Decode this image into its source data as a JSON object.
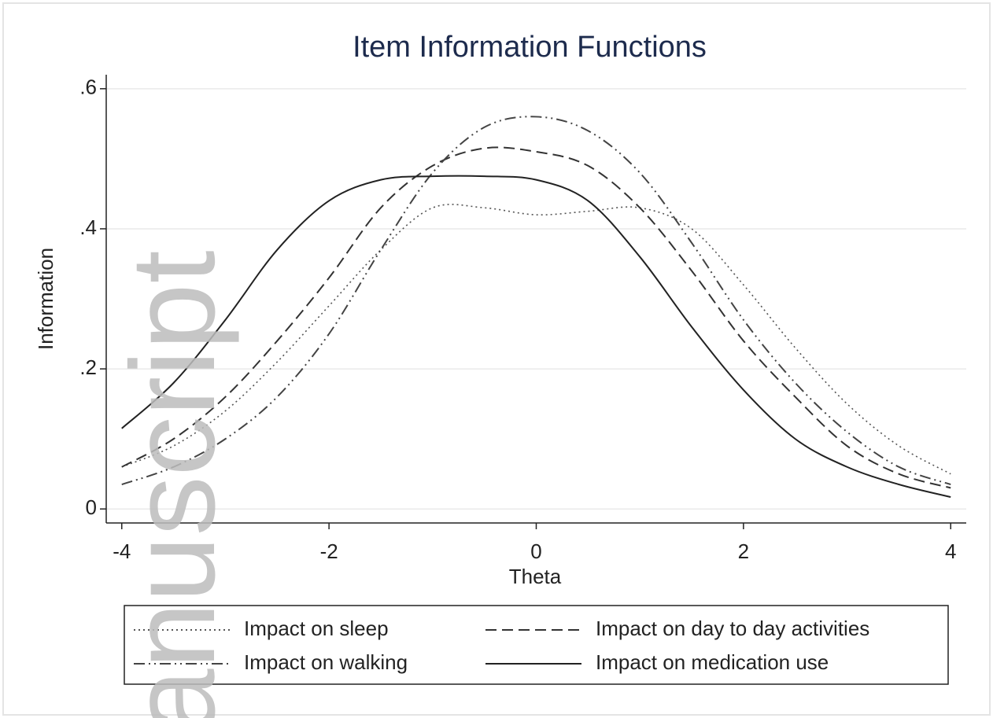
{
  "chart_data": {
    "type": "line",
    "title": "Item Information Functions",
    "x_label": "Theta",
    "y_label": "Information",
    "x": [
      -4,
      -3.5,
      -3,
      -2.5,
      -2,
      -1.5,
      -1,
      -0.5,
      0,
      0.5,
      1,
      1.5,
      2,
      2.5,
      3,
      3.5,
      4
    ],
    "series": [
      {
        "name": "Impact on sleep",
        "color": "#555555",
        "style": "dotted",
        "values": [
          0.06,
          0.09,
          0.14,
          0.21,
          0.29,
          0.37,
          0.43,
          0.43,
          0.42,
          0.425,
          0.43,
          0.4,
          0.32,
          0.23,
          0.15,
          0.09,
          0.05
        ]
      },
      {
        "name": "Impact on day to day activities",
        "color": "#333333",
        "style": "dashed",
        "values": [
          0.06,
          0.1,
          0.16,
          0.24,
          0.33,
          0.43,
          0.49,
          0.515,
          0.51,
          0.49,
          0.43,
          0.34,
          0.24,
          0.16,
          0.09,
          0.05,
          0.03
        ]
      },
      {
        "name": "Impact on walking",
        "color": "#444444",
        "style": "dashdot",
        "values": [
          0.035,
          0.06,
          0.1,
          0.16,
          0.25,
          0.37,
          0.48,
          0.545,
          0.56,
          0.54,
          0.48,
          0.38,
          0.27,
          0.18,
          0.11,
          0.06,
          0.035
        ]
      },
      {
        "name": "Impact on medication use",
        "color": "#222222",
        "style": "solid",
        "values": [
          0.115,
          0.18,
          0.27,
          0.37,
          0.44,
          0.47,
          0.475,
          0.475,
          0.47,
          0.44,
          0.36,
          0.26,
          0.17,
          0.1,
          0.06,
          0.035,
          0.017
        ]
      }
    ],
    "xlim": [
      -4.15,
      4.15
    ],
    "ylim": [
      -0.02,
      0.62
    ],
    "xticks": [
      -4,
      -2,
      0,
      2,
      4
    ],
    "yticks": [
      0,
      {
        "value": 0.2,
        "label": ".2"
      },
      {
        "value": 0.4,
        "label": ".4"
      },
      {
        "value": 0.6,
        "label": ".6"
      }
    ],
    "grid": true,
    "legend": "bottom",
    "watermark": "anuscript"
  }
}
